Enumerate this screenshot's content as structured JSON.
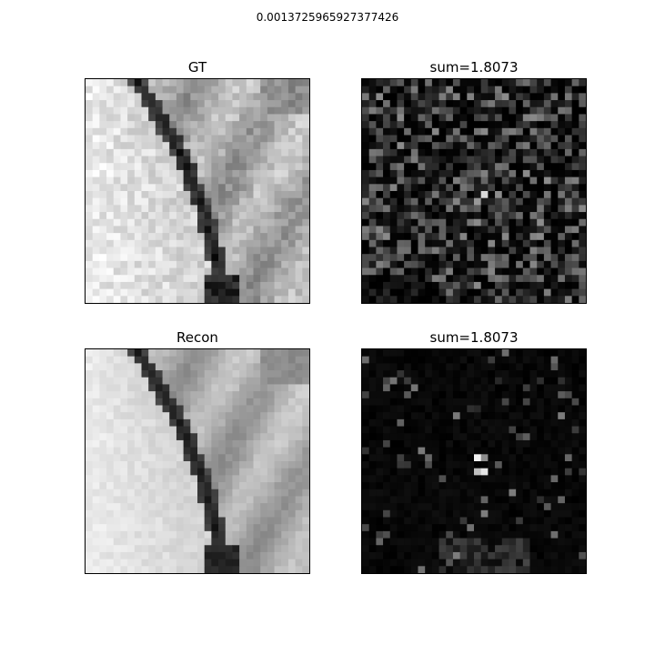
{
  "figure": {
    "suptitle": "0.0013725965927377426"
  },
  "chart_data": [
    {
      "type": "heatmap",
      "title": "GT",
      "colormap": "gray_r",
      "grid": "32x32",
      "axes_ticks": "hidden"
    },
    {
      "type": "heatmap",
      "title": "sum=1.8073",
      "colormap": "gray",
      "grid": "32x32",
      "axes_ticks": "hidden"
    },
    {
      "type": "heatmap",
      "title": "Recon",
      "colormap": "gray_r",
      "grid": "32x32",
      "axes_ticks": "hidden"
    },
    {
      "type": "heatmap",
      "title": "sum=1.8073",
      "colormap": "gray",
      "grid": "32x32",
      "axes_ticks": "hidden"
    }
  ]
}
